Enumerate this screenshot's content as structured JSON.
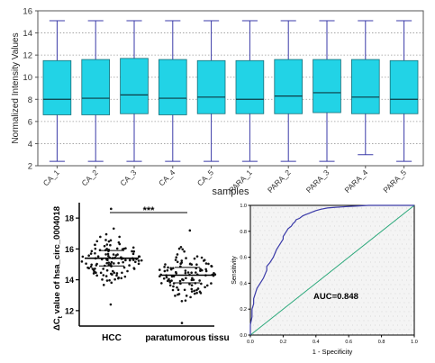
{
  "chart_data": [
    {
      "type": "box",
      "ylabel": "Normalized Intensity Values",
      "xlabel": "samples",
      "ylim": [
        2,
        16
      ],
      "yticks": [
        2,
        4,
        6,
        8,
        10,
        12,
        14,
        16
      ],
      "grid": "horizontal-dotted",
      "box_color": "#22d3e6",
      "whisker_color": "#3a3aa8",
      "categories": [
        "CA_1",
        "CA_2",
        "CA_3",
        "CA_4",
        "CA_5",
        "PARA_1",
        "PARA_2",
        "PARA_3",
        "PARA_4",
        "PARA_5"
      ],
      "boxes": [
        {
          "min": 2.4,
          "q1": 6.6,
          "median": 8.0,
          "q3": 11.5,
          "max": 15.1
        },
        {
          "min": 2.4,
          "q1": 6.6,
          "median": 8.1,
          "q3": 11.6,
          "max": 15.1
        },
        {
          "min": 2.4,
          "q1": 6.7,
          "median": 8.4,
          "q3": 11.7,
          "max": 15.1
        },
        {
          "min": 2.4,
          "q1": 6.6,
          "median": 8.1,
          "q3": 11.6,
          "max": 15.1
        },
        {
          "min": 2.4,
          "q1": 6.7,
          "median": 8.2,
          "q3": 11.5,
          "max": 15.1
        },
        {
          "min": 2.4,
          "q1": 6.7,
          "median": 8.0,
          "q3": 11.5,
          "max": 15.1
        },
        {
          "min": 2.4,
          "q1": 6.7,
          "median": 8.3,
          "q3": 11.6,
          "max": 15.1
        },
        {
          "min": 2.4,
          "q1": 6.8,
          "median": 8.6,
          "q3": 11.6,
          "max": 15.1
        },
        {
          "min": 3.0,
          "q1": 6.7,
          "median": 8.2,
          "q3": 11.6,
          "max": 15.1
        },
        {
          "min": 2.4,
          "q1": 6.7,
          "median": 8.0,
          "q3": 11.5,
          "max": 15.1
        }
      ]
    },
    {
      "type": "scatter",
      "subtype": "dot-plot",
      "ylabel_prefix": "ΔC",
      "ylabel_sub": "t",
      "ylabel_suffix": " value of hsa_circ_0004018",
      "yticks": [
        12,
        14,
        16,
        18
      ],
      "ylim": [
        11,
        19
      ],
      "categories": [
        "HCC",
        "paratumorous tissu"
      ],
      "significance": "***",
      "groups": [
        {
          "median": 15.4,
          "q1": 14.9,
          "q3": 15.9,
          "min": 12.4,
          "max": 18.6,
          "n": 120
        },
        {
          "median": 14.3,
          "q1": 13.8,
          "q3": 14.8,
          "min": 11.2,
          "max": 17.2,
          "n": 110
        }
      ]
    },
    {
      "type": "line",
      "subtype": "roc",
      "xlabel": "1 - Specificity",
      "ylabel": "Sensitivity",
      "xlim": [
        0,
        1
      ],
      "ylim": [
        0,
        1
      ],
      "xticks": [
        "0.0",
        "0.2",
        "0.4",
        "0.6",
        "0.8",
        "1.0"
      ],
      "yticks": [
        "0.0",
        "0.2",
        "0.4",
        "0.6",
        "0.8",
        "1.0"
      ],
      "annotation": "AUC=0.848",
      "curve_color": "#3a3aa8",
      "reference_color": "#2aa87a",
      "x": [
        0.0,
        0.0,
        0.01,
        0.01,
        0.02,
        0.02,
        0.03,
        0.04,
        0.05,
        0.07,
        0.08,
        0.09,
        0.1,
        0.1,
        0.12,
        0.13,
        0.14,
        0.15,
        0.16,
        0.17,
        0.18,
        0.19,
        0.2,
        0.2,
        0.21,
        0.22,
        0.23,
        0.25,
        0.26,
        0.27,
        0.28,
        0.3,
        0.32,
        0.34,
        0.36,
        0.38,
        0.4,
        0.43,
        0.47,
        0.52,
        0.58,
        0.65,
        0.72,
        0.8,
        0.9,
        1.0
      ],
      "y": [
        0.0,
        0.08,
        0.14,
        0.2,
        0.24,
        0.28,
        0.32,
        0.36,
        0.38,
        0.42,
        0.44,
        0.47,
        0.5,
        0.53,
        0.56,
        0.58,
        0.6,
        0.63,
        0.66,
        0.68,
        0.7,
        0.72,
        0.74,
        0.76,
        0.78,
        0.8,
        0.82,
        0.84,
        0.86,
        0.87,
        0.89,
        0.9,
        0.92,
        0.93,
        0.94,
        0.95,
        0.96,
        0.97,
        0.98,
        0.985,
        0.99,
        0.995,
        1.0,
        1.0,
        1.0,
        1.0
      ]
    }
  ]
}
